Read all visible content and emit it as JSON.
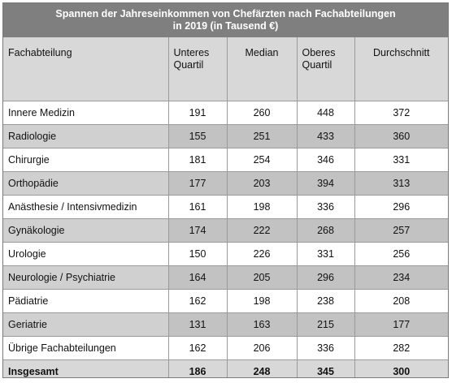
{
  "title_line1": "Spannen der Jahreseinkommen von  Chefärzten nach Fachabteilungen",
  "title_line2": "in 2019 (in Tausend €)",
  "columns": [
    "Fachabteilung",
    "Unteres Quartil",
    "Median",
    "Oberes Quartil",
    "Durchschnitt"
  ],
  "rows": [
    {
      "name": "Innere Medizin",
      "q1": "191",
      "median": "260",
      "q3": "448",
      "avg": "372"
    },
    {
      "name": "Radiologie",
      "q1": "155",
      "median": "251",
      "q3": "433",
      "avg": "360"
    },
    {
      "name": "Chirurgie",
      "q1": "181",
      "median": "254",
      "q3": "346",
      "avg": "331"
    },
    {
      "name": "Orthopädie",
      "q1": "177",
      "median": "203",
      "q3": "394",
      "avg": "313"
    },
    {
      "name": "Anästhesie / Intensivmedizin",
      "q1": "161",
      "median": "198",
      "q3": "336",
      "avg": "296"
    },
    {
      "name": "Gynäkologie",
      "q1": "174",
      "median": "222",
      "q3": "268",
      "avg": "257"
    },
    {
      "name": "Urologie",
      "q1": "150",
      "median": "226",
      "q3": "331",
      "avg": "256"
    },
    {
      "name": "Neurologie / Psychiatrie",
      "q1": "164",
      "median": "205",
      "q3": "296",
      "avg": "234"
    },
    {
      "name": "Pädiatrie",
      "q1": "162",
      "median": "198",
      "q3": "238",
      "avg": "208"
    },
    {
      "name": "Geriatrie",
      "q1": "131",
      "median": "163",
      "q3": "215",
      "avg": "177"
    },
    {
      "name": "Übrige Fachabteilungen",
      "q1": "162",
      "median": "206",
      "q3": "336",
      "avg": "282"
    }
  ],
  "total": {
    "name": "Insgesamt",
    "q1": "186",
    "median": "248",
    "q3": "345",
    "avg": "300"
  },
  "colors": {
    "title_bg": "#7f7f7f",
    "header_bg": "#d8d8d8",
    "row_alt": "#c2c2c2"
  }
}
